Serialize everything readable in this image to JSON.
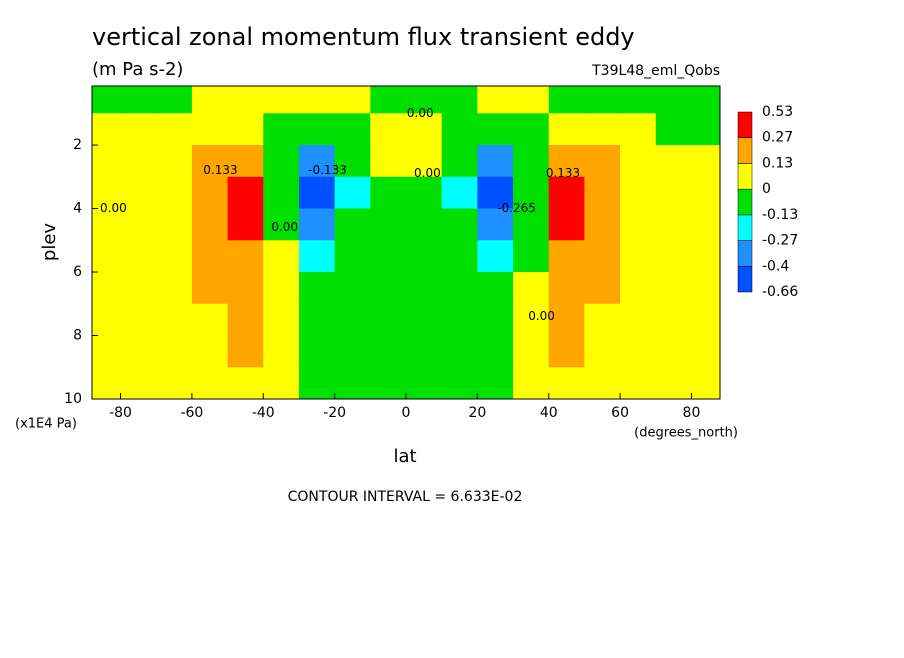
{
  "chart_data": {
    "type": "contour",
    "title": "vertical zonal momentum flux transient eddy",
    "subtitle": "(m Pa s-2)",
    "run_label": "T39L48_eml_Qobs",
    "x_label": "lat",
    "x_units": "(degrees_north)",
    "y_label": "plev",
    "y_units": "(x1E4 Pa)",
    "footnote": "CONTOUR INTERVAL = 6.633E-02",
    "xlim": [
      -88,
      88
    ],
    "xticks": [
      -80,
      -60,
      -40,
      -20,
      0,
      20,
      40,
      60,
      80
    ],
    "ylim": [
      10,
      0.14
    ],
    "yticks": [
      2,
      4,
      6,
      8,
      10
    ],
    "x": [
      -85,
      -75,
      -65,
      -55,
      -45,
      -35,
      -25,
      -15,
      -5,
      5,
      15,
      25,
      35,
      45,
      55,
      65,
      75,
      85
    ],
    "y": [
      0.5,
      1.5,
      2.5,
      3.5,
      4.5,
      5.5,
      6.5,
      7.5,
      8.5,
      9.5
    ],
    "z": [
      [
        -0.05,
        -0.05,
        -0.03,
        0.03,
        0.05,
        0.05,
        0.05,
        0.03,
        -0.03,
        -0.03,
        -0.03,
        0.03,
        0.05,
        -0.02,
        -0.05,
        -0.05,
        -0.05,
        -0.05
      ],
      [
        0.03,
        0.03,
        0.05,
        0.05,
        0.03,
        -0.05,
        -0.08,
        -0.03,
        0.02,
        0.02,
        -0.03,
        -0.08,
        -0.05,
        0.03,
        0.05,
        0.03,
        -0.03,
        -0.05
      ],
      [
        0.03,
        0.05,
        0.1,
        0.2,
        0.25,
        -0.05,
        -0.35,
        -0.1,
        0.02,
        0.02,
        -0.1,
        -0.35,
        -0.05,
        0.25,
        0.2,
        0.08,
        0.03,
        0.02
      ],
      [
        0.02,
        0.05,
        0.12,
        0.25,
        0.45,
        -0.05,
        -0.5,
        -0.15,
        -0.05,
        -0.05,
        -0.15,
        -0.5,
        -0.08,
        0.45,
        0.25,
        0.1,
        0.05,
        0.03
      ],
      [
        0.02,
        0.05,
        0.1,
        0.22,
        0.35,
        -0.05,
        -0.3,
        -0.1,
        -0.05,
        -0.05,
        -0.1,
        -0.35,
        -0.05,
        0.35,
        0.22,
        0.08,
        0.05,
        0.03
      ],
      [
        0.02,
        0.04,
        0.08,
        0.2,
        0.2,
        0.02,
        -0.15,
        -0.05,
        -0.05,
        -0.05,
        -0.05,
        -0.2,
        -0.02,
        0.2,
        0.2,
        0.08,
        0.04,
        0.03
      ],
      [
        0.02,
        0.03,
        0.06,
        0.15,
        0.18,
        0.03,
        -0.05,
        -0.05,
        -0.05,
        -0.05,
        -0.05,
        -0.08,
        0.02,
        0.18,
        0.15,
        0.06,
        0.03,
        0.02
      ],
      [
        0.02,
        0.03,
        0.05,
        0.12,
        0.16,
        0.03,
        -0.05,
        -0.05,
        -0.05,
        -0.05,
        -0.05,
        -0.08,
        0.02,
        0.16,
        0.12,
        0.05,
        0.03,
        0.02
      ],
      [
        0.02,
        0.03,
        0.05,
        0.08,
        0.15,
        0.02,
        -0.08,
        -0.05,
        -0.05,
        -0.05,
        -0.05,
        -0.08,
        0.02,
        0.15,
        0.08,
        0.05,
        0.03,
        0.02
      ],
      [
        0.02,
        0.03,
        0.04,
        0.05,
        0.08,
        0.03,
        -0.05,
        -0.05,
        -0.03,
        -0.03,
        -0.05,
        -0.05,
        0.03,
        0.08,
        0.05,
        0.04,
        0.03,
        0.02
      ]
    ],
    "levels": [
      -0.66,
      -0.4,
      -0.27,
      -0.13,
      0,
      0.13,
      0.27,
      0.53
    ],
    "level_colors": [
      "#0050ff",
      "#1e90ff",
      "#00ffff",
      "#00e000",
      "#ffff00",
      "#ffa500",
      "#ff0000"
    ],
    "contour_labels": [
      {
        "text": "0.00",
        "lat": 4,
        "plev": 1
      },
      {
        "text": "0.00",
        "lat": 6,
        "plev": 2.9
      },
      {
        "text": "0.00",
        "lat": -82,
        "plev": 4
      },
      {
        "text": "0.133",
        "lat": -52,
        "plev": 2.8
      },
      {
        "text": "-0.133",
        "lat": -22,
        "plev": 2.8
      },
      {
        "text": "0.00",
        "lat": -34,
        "plev": 4.6
      },
      {
        "text": "-0.265",
        "lat": 31,
        "plev": 4
      },
      {
        "text": "0.133",
        "lat": 44,
        "plev": 2.9
      },
      {
        "text": "0.00",
        "lat": 38,
        "plev": 7.4
      }
    ]
  }
}
